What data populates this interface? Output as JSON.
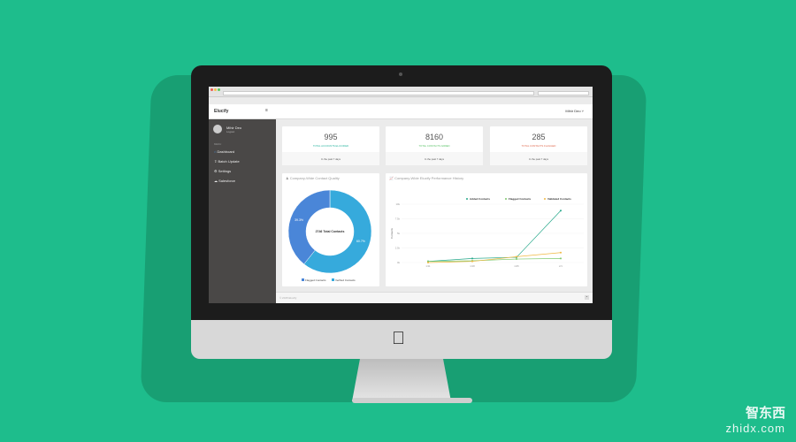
{
  "app": {
    "brand": "Elucify",
    "user": "Mihir Deo",
    "logout": "Logout",
    "menu_heading": "MENU",
    "footer": "© 2015 Elucify"
  },
  "sidebar": {
    "items": [
      {
        "label": "Dashboard",
        "icon": "home-icon",
        "active": true
      },
      {
        "label": "Batch Update",
        "icon": "upload-icon"
      },
      {
        "label": "Settings",
        "icon": "gear-icon"
      },
      {
        "label": "Salesforce",
        "icon": "cloud-icon"
      }
    ]
  },
  "stats": [
    {
      "value": "995",
      "label": "TOTAL ACCOUNTS ELUCIFIED",
      "footer": "In the past 7 days",
      "color": "#2bb5a0"
    },
    {
      "value": "8160",
      "label": "TOTAL CONTACTS ADDED",
      "footer": "In the past 7 days",
      "color": "#5cc36a"
    },
    {
      "value": "285",
      "label": "TOTAL CONTACTS FLAGGED",
      "footer": "In the past 7 days",
      "color": "#e06a4f"
    }
  ],
  "panels": {
    "quality_title": "Company-Wide Contact Quality",
    "history_title": "Company-Wide Elucify Performance History"
  },
  "chart_data": [
    {
      "type": "pie",
      "donut": true,
      "center_label": "2746 Total Contacts",
      "slices": [
        {
          "name": "Verified Contacts",
          "value": 60.7,
          "label": "60.7%",
          "color": "#36aadc"
        },
        {
          "name": "Flagged Contacts",
          "value": 39.3,
          "label": "39.3%",
          "color": "#4a86d8"
        }
      ],
      "legend": "bottom"
    },
    {
      "type": "line",
      "x": [
        "1/11",
        "1/18",
        "1/25",
        "2/1"
      ],
      "ylabel": "Contacts",
      "yticks": [
        "0k",
        "2.5k",
        "5k",
        "7.5k",
        "10k"
      ],
      "ylim": [
        0,
        10000
      ],
      "legend": "top-right",
      "grid": true,
      "series": [
        {
          "name": "Added Contacts",
          "color": "#26a88a",
          "values": [
            200,
            700,
            900,
            8900
          ]
        },
        {
          "name": "Flagged Contacts",
          "color": "#7cc86c",
          "values": [
            200,
            300,
            600,
            700
          ]
        },
        {
          "name": "Validated Contacts",
          "color": "#f0b840",
          "values": [
            0,
            200,
            1000,
            1700
          ]
        }
      ]
    }
  ],
  "watermark": {
    "cn": "智东西",
    "en": "zhidx.com"
  }
}
